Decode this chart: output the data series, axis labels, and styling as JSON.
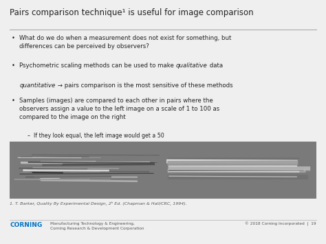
{
  "bg_color": "#efefef",
  "title": "Pairs comparison technique¹ is useful for image comparison",
  "title_fontsize": 8.5,
  "title_color": "#222222",
  "divider_color": "#aaaaaa",
  "bullet_color": "#222222",
  "bullet_fontsize": 6.2,
  "bullets": [
    "What do we do when a measurement does not exist for something, but\ndifferences can be perceived by observers?",
    "Psychometric scaling methods can be used to make qualitative data\nquantitative → pairs comparison is the most sensitive of these methods",
    "Samples (images) are compared to each other in pairs where the\nobservers assign a value to the left image on a scale of 1 to 100 as\ncompared to the image on the right"
  ],
  "sub_bullet": "–  If they look equal, the left image would get a 50",
  "image_panel_bg": "#7a7a7a",
  "footnote": "1. T. Barker, Quality By Experimental Design, 2ʰ Ed. (Chapman & Hall/CRC, 1994).",
  "footnote_fontsize": 4.5,
  "footer_left_logo": "CORNING",
  "footer_left_logo_color": "#0072c6",
  "footer_left_text": "Manufacturing Technology & Engineering,\nCorning Research & Development Corporation",
  "footer_right_text": "© 2018 Corning Incorporated  |  19",
  "footer_fontsize": 4.2,
  "footer_color": "#555555"
}
